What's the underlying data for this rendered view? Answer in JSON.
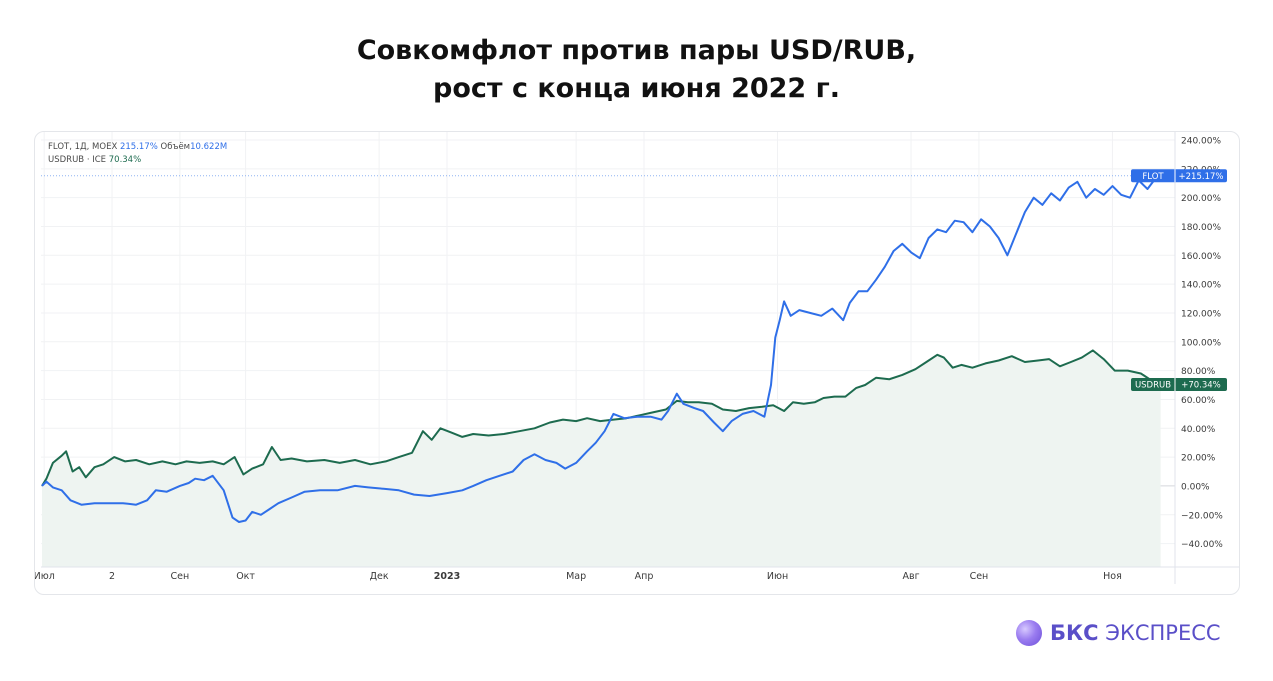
{
  "title_line1": "Совкомфлот против пары USD/RUB,",
  "title_line2": "рост с конца июня 2022 г.",
  "legend": {
    "flot_label": "FLOT, 1Д, MOEX",
    "flot_value": "215.17%",
    "flot_volume_label": "Объём",
    "flot_volume_value": "10.622M",
    "usd_label": "USDRUB · ICE",
    "usd_value": "70.34%"
  },
  "brand": {
    "bold": "БКС",
    "rest": "ЭКСПРЕСС"
  },
  "colors": {
    "flot": "#2f6fe8",
    "usdrub": "#1d6b4f",
    "area": "#eef4f1"
  },
  "chart_data": {
    "type": "line",
    "ylim": [
      -50,
      240
    ],
    "y_ticks": [
      240,
      220,
      200,
      180,
      160,
      140,
      120,
      100,
      80,
      60,
      40,
      20,
      0,
      -20,
      -40
    ],
    "y_tick_labels": [
      "240.00%",
      "220.00%",
      "200.00%",
      "180.00%",
      "160.00%",
      "140.00%",
      "120.00%",
      "100.00%",
      "80.00%",
      "60.00%",
      "40.00%",
      "20.00%",
      "0.00%",
      "−20.00%",
      "−40.00%"
    ],
    "x_range": [
      "2022-06-30",
      "2023-11-25"
    ],
    "x_ticks": [
      {
        "date": "2022-07-01",
        "label": "Июл",
        "bold": false
      },
      {
        "date": "2022-08-01",
        "label": "2",
        "bold": false
      },
      {
        "date": "2022-09-01",
        "label": "Сен",
        "bold": false
      },
      {
        "date": "2022-10-01",
        "label": "Окт",
        "bold": false
      },
      {
        "date": "2022-12-01",
        "label": "Дек",
        "bold": false
      },
      {
        "date": "2023-01-01",
        "label": "2023",
        "bold": true
      },
      {
        "date": "2023-03-01",
        "label": "Мар",
        "bold": false
      },
      {
        "date": "2023-04-01",
        "label": "Апр",
        "bold": false
      },
      {
        "date": "2023-06-01",
        "label": "Июн",
        "bold": false
      },
      {
        "date": "2023-08-01",
        "label": "Авг",
        "bold": false
      },
      {
        "date": "2023-09-01",
        "label": "Сен",
        "bold": false
      },
      {
        "date": "2023-11-01",
        "label": "Ноя",
        "bold": false
      }
    ],
    "series": [
      {
        "name": "FLOT",
        "last_label": "+215.17%",
        "points": [
          [
            "2022-06-30",
            0
          ],
          [
            "2022-07-02",
            3
          ],
          [
            "2022-07-05",
            -1
          ],
          [
            "2022-07-09",
            -3
          ],
          [
            "2022-07-13",
            -10
          ],
          [
            "2022-07-18",
            -13
          ],
          [
            "2022-07-24",
            -12
          ],
          [
            "2022-07-31",
            -12
          ],
          [
            "2022-08-06",
            -12
          ],
          [
            "2022-08-12",
            -13
          ],
          [
            "2022-08-17",
            -10
          ],
          [
            "2022-08-21",
            -3
          ],
          [
            "2022-08-26",
            -4
          ],
          [
            "2022-09-01",
            0
          ],
          [
            "2022-09-05",
            2
          ],
          [
            "2022-09-08",
            5
          ],
          [
            "2022-09-12",
            4
          ],
          [
            "2022-09-16",
            7
          ],
          [
            "2022-09-21",
            -3
          ],
          [
            "2022-09-25",
            -22
          ],
          [
            "2022-09-28",
            -25
          ],
          [
            "2022-10-01",
            -24
          ],
          [
            "2022-10-04",
            -18
          ],
          [
            "2022-10-08",
            -20
          ],
          [
            "2022-10-12",
            -16
          ],
          [
            "2022-10-16",
            -12
          ],
          [
            "2022-10-22",
            -8
          ],
          [
            "2022-10-28",
            -4
          ],
          [
            "2022-11-04",
            -3
          ],
          [
            "2022-11-12",
            -3
          ],
          [
            "2022-11-20",
            0
          ],
          [
            "2022-11-26",
            -1
          ],
          [
            "2022-12-03",
            -2
          ],
          [
            "2022-12-10",
            -3
          ],
          [
            "2022-12-17",
            -6
          ],
          [
            "2022-12-24",
            -7
          ],
          [
            "2023-01-01",
            -5
          ],
          [
            "2023-01-08",
            -3
          ],
          [
            "2023-01-13",
            0
          ],
          [
            "2023-01-19",
            4
          ],
          [
            "2023-01-25",
            7
          ],
          [
            "2023-01-31",
            10
          ],
          [
            "2023-02-05",
            18
          ],
          [
            "2023-02-10",
            22
          ],
          [
            "2023-02-15",
            18
          ],
          [
            "2023-02-20",
            16
          ],
          [
            "2023-02-24",
            12
          ],
          [
            "2023-03-01",
            16
          ],
          [
            "2023-03-06",
            24
          ],
          [
            "2023-03-10",
            30
          ],
          [
            "2023-03-14",
            38
          ],
          [
            "2023-03-18",
            50
          ],
          [
            "2023-03-23",
            47
          ],
          [
            "2023-03-29",
            48
          ],
          [
            "2023-04-04",
            48
          ],
          [
            "2023-04-09",
            46
          ],
          [
            "2023-04-12",
            52
          ],
          [
            "2023-04-16",
            64
          ],
          [
            "2023-04-19",
            57
          ],
          [
            "2023-04-24",
            54
          ],
          [
            "2023-04-28",
            52
          ],
          [
            "2023-05-03",
            44
          ],
          [
            "2023-05-07",
            38
          ],
          [
            "2023-05-11",
            45
          ],
          [
            "2023-05-16",
            50
          ],
          [
            "2023-05-21",
            52
          ],
          [
            "2023-05-26",
            48
          ],
          [
            "2023-05-29",
            70
          ],
          [
            "2023-05-31",
            103
          ],
          [
            "2023-06-02",
            115
          ],
          [
            "2023-06-04",
            128
          ],
          [
            "2023-06-07",
            118
          ],
          [
            "2023-06-11",
            122
          ],
          [
            "2023-06-16",
            120
          ],
          [
            "2023-06-21",
            118
          ],
          [
            "2023-06-26",
            123
          ],
          [
            "2023-07-01",
            115
          ],
          [
            "2023-07-04",
            127
          ],
          [
            "2023-07-08",
            135
          ],
          [
            "2023-07-12",
            135
          ],
          [
            "2023-07-16",
            143
          ],
          [
            "2023-07-20",
            152
          ],
          [
            "2023-07-24",
            163
          ],
          [
            "2023-07-28",
            168
          ],
          [
            "2023-08-01",
            162
          ],
          [
            "2023-08-05",
            158
          ],
          [
            "2023-08-09",
            172
          ],
          [
            "2023-08-13",
            178
          ],
          [
            "2023-08-17",
            176
          ],
          [
            "2023-08-21",
            184
          ],
          [
            "2023-08-25",
            183
          ],
          [
            "2023-08-29",
            176
          ],
          [
            "2023-09-02",
            185
          ],
          [
            "2023-09-06",
            180
          ],
          [
            "2023-09-10",
            172
          ],
          [
            "2023-09-14",
            160
          ],
          [
            "2023-09-18",
            175
          ],
          [
            "2023-09-22",
            190
          ],
          [
            "2023-09-26",
            200
          ],
          [
            "2023-09-30",
            195
          ],
          [
            "2023-10-04",
            203
          ],
          [
            "2023-10-08",
            198
          ],
          [
            "2023-10-12",
            207
          ],
          [
            "2023-10-16",
            211
          ],
          [
            "2023-10-20",
            200
          ],
          [
            "2023-10-24",
            206
          ],
          [
            "2023-10-28",
            202
          ],
          [
            "2023-11-01",
            208
          ],
          [
            "2023-11-05",
            202
          ],
          [
            "2023-11-09",
            200
          ],
          [
            "2023-11-13",
            212
          ],
          [
            "2023-11-17",
            206
          ],
          [
            "2023-11-21",
            214
          ],
          [
            "2023-11-23",
            215.17
          ]
        ]
      },
      {
        "name": "USDRUB",
        "last_label": "+70.34%",
        "points": [
          [
            "2022-06-30",
            0
          ],
          [
            "2022-07-02",
            5
          ],
          [
            "2022-07-05",
            16
          ],
          [
            "2022-07-09",
            21
          ],
          [
            "2022-07-11",
            24
          ],
          [
            "2022-07-14",
            10
          ],
          [
            "2022-07-17",
            13
          ],
          [
            "2022-07-20",
            6
          ],
          [
            "2022-07-24",
            13
          ],
          [
            "2022-07-28",
            15
          ],
          [
            "2022-08-02",
            20
          ],
          [
            "2022-08-07",
            17
          ],
          [
            "2022-08-12",
            18
          ],
          [
            "2022-08-18",
            15
          ],
          [
            "2022-08-24",
            17
          ],
          [
            "2022-08-30",
            15
          ],
          [
            "2022-09-04",
            17
          ],
          [
            "2022-09-10",
            16
          ],
          [
            "2022-09-16",
            17
          ],
          [
            "2022-09-21",
            15
          ],
          [
            "2022-09-26",
            20
          ],
          [
            "2022-09-30",
            8
          ],
          [
            "2022-10-04",
            12
          ],
          [
            "2022-10-09",
            15
          ],
          [
            "2022-10-13",
            27
          ],
          [
            "2022-10-17",
            18
          ],
          [
            "2022-10-22",
            19
          ],
          [
            "2022-10-29",
            17
          ],
          [
            "2022-11-06",
            18
          ],
          [
            "2022-11-13",
            16
          ],
          [
            "2022-11-20",
            18
          ],
          [
            "2022-11-27",
            15
          ],
          [
            "2022-12-04",
            17
          ],
          [
            "2022-12-10",
            20
          ],
          [
            "2022-12-16",
            23
          ],
          [
            "2022-12-21",
            38
          ],
          [
            "2022-12-25",
            32
          ],
          [
            "2022-12-29",
            40
          ],
          [
            "2023-01-03",
            37
          ],
          [
            "2023-01-08",
            34
          ],
          [
            "2023-01-13",
            36
          ],
          [
            "2023-01-20",
            35
          ],
          [
            "2023-01-27",
            36
          ],
          [
            "2023-02-03",
            38
          ],
          [
            "2023-02-10",
            40
          ],
          [
            "2023-02-17",
            44
          ],
          [
            "2023-02-23",
            46
          ],
          [
            "2023-03-01",
            45
          ],
          [
            "2023-03-06",
            47
          ],
          [
            "2023-03-12",
            45
          ],
          [
            "2023-03-18",
            46
          ],
          [
            "2023-03-24",
            47
          ],
          [
            "2023-03-30",
            49
          ],
          [
            "2023-04-05",
            51
          ],
          [
            "2023-04-11",
            53
          ],
          [
            "2023-04-16",
            59
          ],
          [
            "2023-04-21",
            58
          ],
          [
            "2023-04-26",
            58
          ],
          [
            "2023-05-02",
            57
          ],
          [
            "2023-05-07",
            53
          ],
          [
            "2023-05-13",
            52
          ],
          [
            "2023-05-19",
            54
          ],
          [
            "2023-05-25",
            55
          ],
          [
            "2023-05-30",
            56
          ],
          [
            "2023-06-04",
            52
          ],
          [
            "2023-06-08",
            58
          ],
          [
            "2023-06-13",
            57
          ],
          [
            "2023-06-18",
            58
          ],
          [
            "2023-06-22",
            61
          ],
          [
            "2023-06-27",
            62
          ],
          [
            "2023-07-02",
            62
          ],
          [
            "2023-07-07",
            68
          ],
          [
            "2023-07-11",
            70
          ],
          [
            "2023-07-16",
            75
          ],
          [
            "2023-07-22",
            74
          ],
          [
            "2023-07-28",
            77
          ],
          [
            "2023-08-03",
            81
          ],
          [
            "2023-08-08",
            86
          ],
          [
            "2023-08-13",
            91
          ],
          [
            "2023-08-16",
            89
          ],
          [
            "2023-08-20",
            82
          ],
          [
            "2023-08-24",
            84
          ],
          [
            "2023-08-29",
            82
          ],
          [
            "2023-09-04",
            85
          ],
          [
            "2023-09-10",
            87
          ],
          [
            "2023-09-16",
            90
          ],
          [
            "2023-09-22",
            86
          ],
          [
            "2023-09-28",
            87
          ],
          [
            "2023-10-03",
            88
          ],
          [
            "2023-10-08",
            83
          ],
          [
            "2023-10-13",
            86
          ],
          [
            "2023-10-18",
            89
          ],
          [
            "2023-10-23",
            94
          ],
          [
            "2023-10-28",
            88
          ],
          [
            "2023-11-02",
            80
          ],
          [
            "2023-11-08",
            80
          ],
          [
            "2023-11-14",
            78
          ],
          [
            "2023-11-19",
            73
          ],
          [
            "2023-11-23",
            70.34
          ]
        ]
      }
    ]
  }
}
